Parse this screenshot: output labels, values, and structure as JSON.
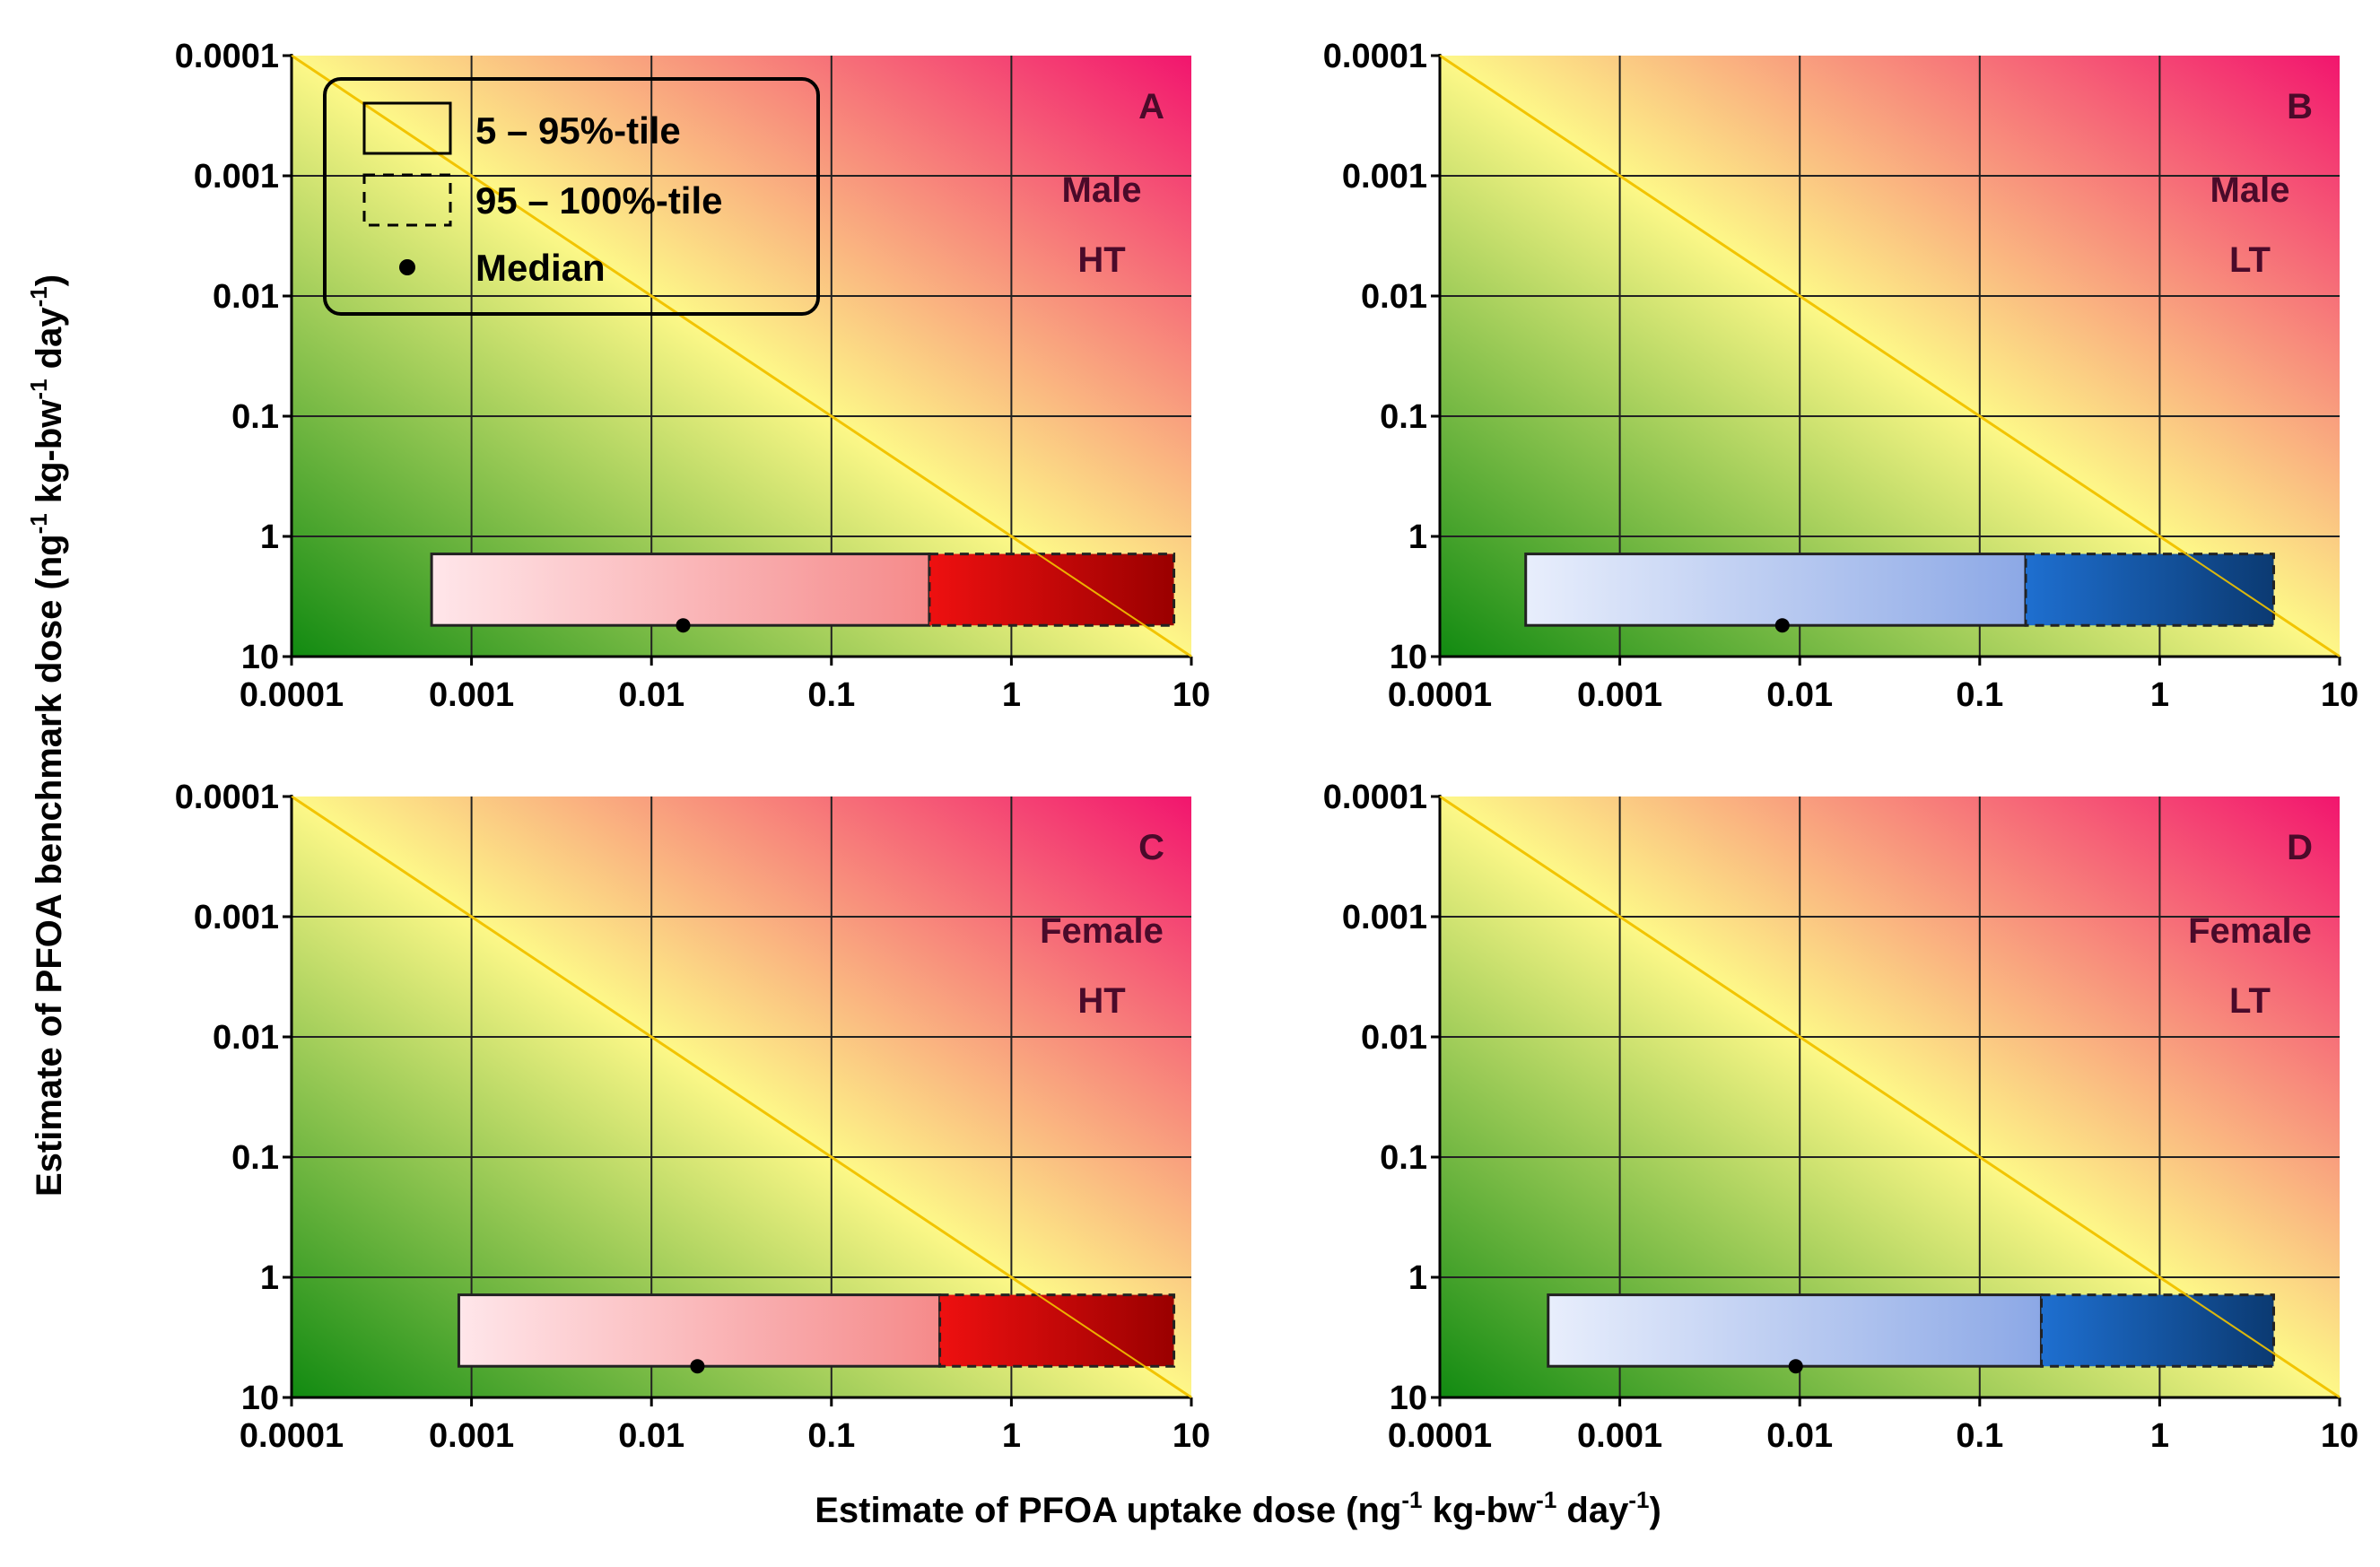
{
  "chart_data": {
    "type": "box-range-on-risk-map",
    "xlabel": "Estimate of PFOA uptake dose (ng",
    "xlabel_sup1": "-1",
    "xlabel_mid": " kg-bw",
    "xlabel_sup2": "-1",
    "xlabel_end": " day",
    "xlabel_sup3": "-1",
    "xlabel_close": ")",
    "ylabel": "Estimate of PFOA benchmark dose (ng",
    "ylabel_sup1": "-1",
    "ylabel_mid": " kg-bw",
    "ylabel_sup2": "-1",
    "ylabel_end": " day",
    "ylabel_sup3": "-1",
    "ylabel_close": ")",
    "xscale": "log",
    "yscale": "log",
    "xlim": [
      0.0001,
      10
    ],
    "ylim_top_to_bottom": [
      0.0001,
      10
    ],
    "x_tick_labels": [
      "0.0001",
      "0.001",
      "0.01",
      "0.1",
      "1",
      "10"
    ],
    "y_tick_labels": [
      "0.0001",
      "0.001",
      "0.01",
      "0.1",
      "1",
      "10"
    ],
    "reference_line": "uptake = benchmark (1:1 diagonal)",
    "legend": {
      "solid_box": "5 – 95%-tile",
      "dashed_box": "95 – 100%-tile",
      "dot": "Median"
    },
    "panels": [
      {
        "letter": "A",
        "sex": "Male",
        "group": "HT",
        "color": "red",
        "p5": 0.0006,
        "p95": 0.35,
        "p100": 8.0,
        "median": 0.015,
        "benchmark_low": 1.4,
        "benchmark_high": 5.5
      },
      {
        "letter": "B",
        "sex": "Male",
        "group": "LT",
        "color": "blue",
        "p5": 0.0003,
        "p95": 0.18,
        "p100": 4.3,
        "median": 0.008,
        "benchmark_low": 1.4,
        "benchmark_high": 5.5
      },
      {
        "letter": "C",
        "sex": "Female",
        "group": "HT",
        "color": "red",
        "p5": 0.00085,
        "p95": 0.4,
        "p100": 8.0,
        "median": 0.018,
        "benchmark_low": 1.4,
        "benchmark_high": 5.5
      },
      {
        "letter": "D",
        "sex": "Female",
        "group": "LT",
        "color": "blue",
        "p5": 0.0004,
        "p95": 0.22,
        "p100": 4.3,
        "median": 0.0095,
        "benchmark_low": 1.4,
        "benchmark_high": 5.5
      }
    ]
  },
  "colors": {
    "green": "#118a11",
    "yellow": "#fdf888",
    "magenta": "#f2156e",
    "line": "#f2c400",
    "red_light": "#ffe6ea",
    "red_mid": "#f58a8a",
    "red_bright": "#ee1010",
    "red_dark": "#9a0000",
    "blue_light": "#e8eefc",
    "blue_mid": "#8ca8e6",
    "blue_bright": "#1e6fd0",
    "blue_dark": "#0b3a72"
  }
}
